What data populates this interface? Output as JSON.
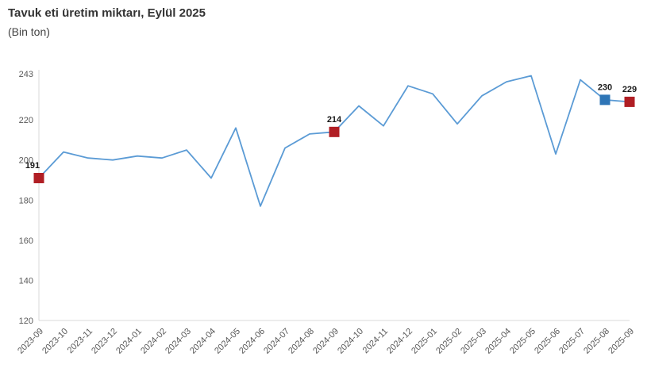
{
  "header": {
    "title": "Tavuk eti üretim miktarı, Eylül 2025",
    "subtitle": "(Bin ton)"
  },
  "chart_data": {
    "type": "line",
    "title": "Tavuk eti üretim miktarı, Eylül 2025",
    "unit": "Bin ton",
    "x": [
      "2023-09",
      "2023-10",
      "2023-11",
      "2023-12",
      "2024-01",
      "2024-02",
      "2024-03",
      "2024-04",
      "2024-05",
      "2024-06",
      "2024-07",
      "2024-08",
      "2024-09",
      "2024-10",
      "2024-11",
      "2024-12",
      "2025-01",
      "2025-02",
      "2025-03",
      "2025-04",
      "2025-05",
      "2025-06",
      "2025-07",
      "2025-08",
      "2025-09"
    ],
    "series": [
      {
        "name": "Tavuk eti üretim miktarı (bin ton)",
        "values": [
          191,
          204,
          201,
          200,
          202,
          201,
          205,
          191,
          216,
          177,
          206,
          213,
          214,
          227,
          217,
          237,
          233,
          218,
          232,
          239,
          242,
          203,
          240,
          230,
          229
        ]
      }
    ],
    "ylim": [
      120,
      243
    ],
    "yticks": [
      243,
      220,
      200,
      180,
      160,
      140,
      120
    ],
    "grid": false,
    "legend_position": "none",
    "line_color": "#5B9BD5",
    "axis_color": "#D9D9D9",
    "highlighted_points": [
      {
        "x": "2023-09",
        "value": 191,
        "label": "191",
        "color": "#B01E24"
      },
      {
        "x": "2024-09",
        "value": 214,
        "label": "214",
        "color": "#B01E24"
      },
      {
        "x": "2025-08",
        "value": 230,
        "label": "230",
        "color": "#2E75B6"
      },
      {
        "x": "2025-09",
        "value": 229,
        "label": "229",
        "color": "#B01E24"
      }
    ]
  }
}
